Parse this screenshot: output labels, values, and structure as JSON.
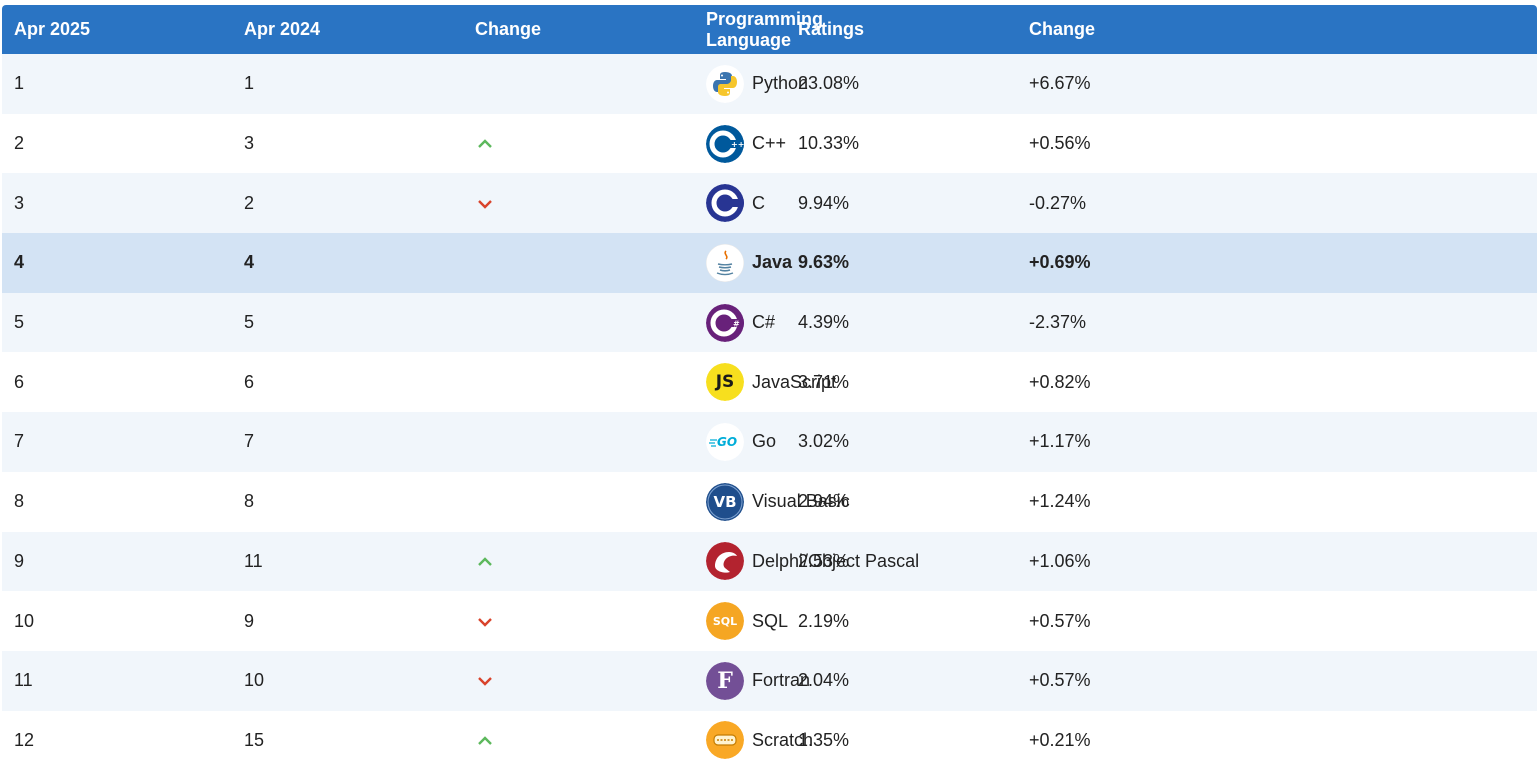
{
  "table": {
    "headers": [
      "Apr 2025",
      "Apr 2024",
      "Change",
      "Programming Language",
      "Ratings",
      "Change"
    ],
    "rows": [
      {
        "rank_now": "1",
        "rank_prev": "1",
        "trend": "none",
        "logo": "python-logo-icon",
        "language": "Python",
        "rating": "23.08%",
        "change": "+6.67%"
      },
      {
        "rank_now": "2",
        "rank_prev": "3",
        "trend": "up",
        "logo": "cpp-logo-icon",
        "language": "C++",
        "rating": "10.33%",
        "change": "+0.56%"
      },
      {
        "rank_now": "3",
        "rank_prev": "2",
        "trend": "down",
        "logo": "c-logo-icon",
        "language": "C",
        "rating": "9.94%",
        "change": "-0.27%"
      },
      {
        "rank_now": "4",
        "rank_prev": "4",
        "trend": "none",
        "logo": "java-logo-icon",
        "language": "Java",
        "rating": "9.63%",
        "change": "+0.69%"
      },
      {
        "rank_now": "5",
        "rank_prev": "5",
        "trend": "none",
        "logo": "csharp-logo-icon",
        "language": "C#",
        "rating": "4.39%",
        "change": "-2.37%"
      },
      {
        "rank_now": "6",
        "rank_prev": "6",
        "trend": "none",
        "logo": "javascript-logo-icon",
        "logo_text": "JS",
        "language": "JavaScript",
        "rating": "3.71%",
        "change": "+0.82%"
      },
      {
        "rank_now": "7",
        "rank_prev": "7",
        "trend": "none",
        "logo": "go-logo-icon",
        "logo_text": "GO",
        "language": "Go",
        "rating": "3.02%",
        "change": "+1.17%"
      },
      {
        "rank_now": "8",
        "rank_prev": "8",
        "trend": "none",
        "logo": "visual-basic-logo-icon",
        "logo_text": "VB",
        "language": "Visual Basic",
        "rating": "2.94%",
        "change": "+1.24%"
      },
      {
        "rank_now": "9",
        "rank_prev": "11",
        "trend": "up",
        "logo": "delphi-logo-icon",
        "language": "Delphi/Object Pascal",
        "rating": "2.53%",
        "change": "+1.06%"
      },
      {
        "rank_now": "10",
        "rank_prev": "9",
        "trend": "down",
        "logo": "sql-logo-icon",
        "logo_text": "SQL",
        "language": "SQL",
        "rating": "2.19%",
        "change": "+0.57%"
      },
      {
        "rank_now": "11",
        "rank_prev": "10",
        "trend": "down",
        "logo": "fortran-logo-icon",
        "logo_text": "F",
        "language": "Fortran",
        "rating": "2.04%",
        "change": "+0.57%"
      },
      {
        "rank_now": "12",
        "rank_prev": "15",
        "trend": "up",
        "logo": "scratch-logo-icon",
        "language": "Scratch",
        "rating": "1.35%",
        "change": "+0.21%"
      }
    ],
    "highlighted_row": "4"
  },
  "colors": {
    "header_bg": "#2a74c3",
    "row_alt_bg": "#f1f6fb",
    "highlight_bg": "#d3e3f4",
    "up_arrow": "#5cb85c",
    "down_arrow": "#d9432b"
  }
}
